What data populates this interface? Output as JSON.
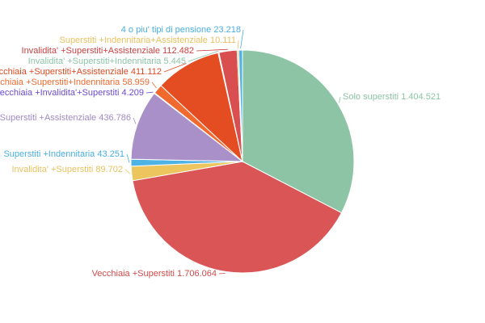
{
  "chart_data": {
    "type": "pie",
    "start": "top",
    "direction": "clockwise",
    "slices": [
      {
        "label": "Solo superstiti",
        "value_text": "1.404.521",
        "value": 1404521,
        "color": "#8dc4a6",
        "label_color": "#8dc4a6"
      },
      {
        "label": "Vecchiaia +Superstiti",
        "value_text": "1.706.064",
        "value": 1706064,
        "color": "#da5656",
        "label_color": "#cf4a4a"
      },
      {
        "label": "Invalidita' +Superstiti",
        "value_text": "89.702",
        "value": 89702,
        "color": "#ecc55e",
        "label_color": "#e8c160"
      },
      {
        "label": "Superstiti +Indennitaria",
        "value_text": "43.251",
        "value": 43251,
        "color": "#4db2e4",
        "label_color": "#4aaee0"
      },
      {
        "label": "Superstiti +Assistenziale",
        "value_text": "436.786",
        "value": 436786,
        "color": "#a990c9",
        "label_color": "#a08ac4"
      },
      {
        "label": "Vecchiaia +Invalidita'+Superstiti",
        "value_text": "4.209",
        "value": 4209,
        "color": "#6d4fd0",
        "label_color": "#6a4bcc"
      },
      {
        "label": "Vecchiaia +Superstiti+Indennitaria",
        "value_text": "58.959",
        "value": 58959,
        "color": "#f0692f",
        "label_color": "#ec6a30"
      },
      {
        "label": "Vecchiaia +Superstiti+Assistenziale",
        "value_text": "411.112",
        "value": 411112,
        "color": "#e44c22",
        "label_color": "#d94a22"
      },
      {
        "label": "Invalidita' +Superstiti+Indennitaria",
        "value_text": "5.445",
        "value": 5445,
        "color": "#8dc4a6",
        "label_color": "#8dc4a6"
      },
      {
        "label": "Invalidita' +Superstiti+Assistenziale",
        "value_text": "112.482",
        "value": 112482,
        "color": "#d94f4f",
        "label_color": "#cc3f3f"
      },
      {
        "label": "Superstiti +Indennitaria+Assistenziale",
        "value_text": "10.111",
        "value": 10111,
        "color": "#ecc55e",
        "label_color": "#e8c160"
      },
      {
        "label": "4 o piu' tipi di pensione",
        "value_text": "23.218",
        "value": 23218,
        "color": "#4db2e4",
        "label_color": "#4aaee0"
      }
    ]
  }
}
